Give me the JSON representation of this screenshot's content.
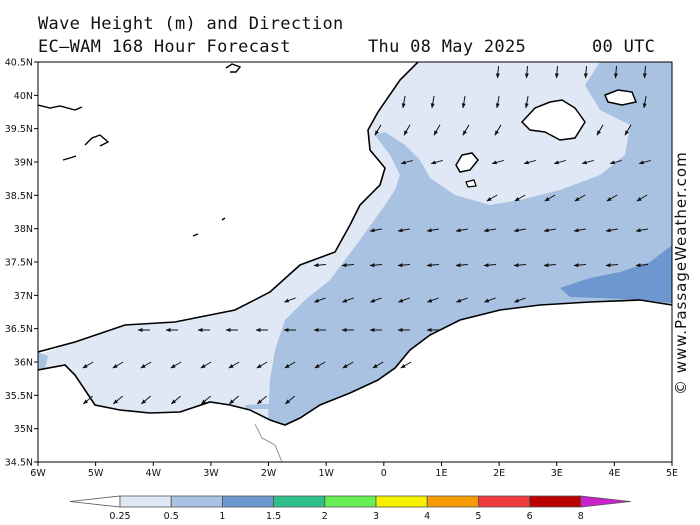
{
  "header": {
    "title": "Wave Height (m) and Direction",
    "model": "EC—WAM 168 Hour Forecast",
    "date": "Thu 08 May 2025",
    "time": "00 UTC"
  },
  "credit": "© www.PassageWeather.com",
  "map": {
    "lon_range": [
      -6,
      5
    ],
    "lat_range": [
      34.5,
      40.5
    ],
    "lon_ticks": [
      "6W",
      "5W",
      "4W",
      "3W",
      "2W",
      "1W",
      "0",
      "1E",
      "2E",
      "3E",
      "4E",
      "5E"
    ],
    "lat_ticks": [
      "40.5N",
      "40N",
      "39.5N",
      "39N",
      "38.5N",
      "38N",
      "37.5N",
      "37N",
      "36.5N",
      "36N",
      "35.5N",
      "35N",
      "34.5N"
    ]
  },
  "legend": {
    "labels": [
      "0.25",
      "0.5",
      "1",
      "1.5",
      "2",
      "3",
      "4",
      "5",
      "6",
      "8"
    ],
    "colors": [
      "#ffffff",
      "#e0e8f5",
      "#a9c2e2",
      "#6e96cf",
      "#2ebf8a",
      "#66ee55",
      "#f5f000",
      "#f59a00",
      "#ee3a3a",
      "#bb0000",
      "#cc22cc"
    ]
  },
  "colors": {
    "land": "#ffffff",
    "coast": "#000000",
    "sea_low": "#e0e8f5",
    "sea_mid": "#a9c2e2",
    "sea_high": "#6e96cf"
  }
}
